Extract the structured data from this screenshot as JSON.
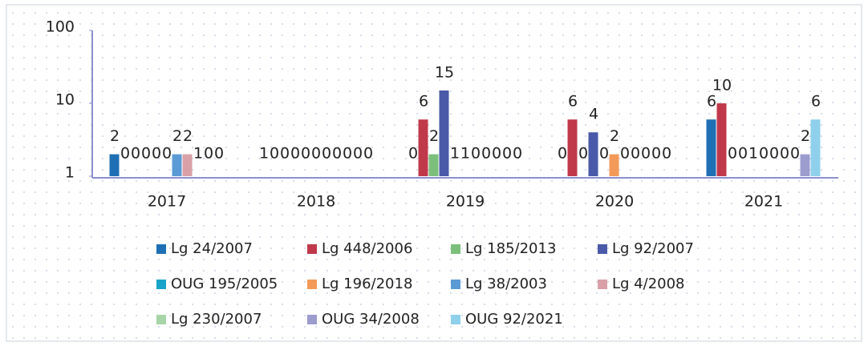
{
  "chart_data": {
    "type": "bar",
    "categories": [
      "2017",
      "2018",
      "2019",
      "2020",
      "2021"
    ],
    "series": [
      {
        "name": "Lg 24/2007",
        "color": "#1f6fb5",
        "values": [
          2,
          1,
          0,
          0,
          6
        ]
      },
      {
        "name": "Lg 448/2006",
        "color": "#c0394b",
        "values": [
          0,
          0,
          6,
          6,
          10
        ]
      },
      {
        "name": "Lg 185/2013",
        "color": "#7bbf7b",
        "values": [
          0,
          0,
          2,
          0,
          0
        ]
      },
      {
        "name": "Lg 92/2007",
        "color": "#4a5aa8",
        "values": [
          0,
          0,
          15,
          4,
          0
        ]
      },
      {
        "name": "OUG 195/2005",
        "color": "#1aa3c8",
        "values": [
          0,
          0,
          1,
          0,
          1
        ]
      },
      {
        "name": "Lg 196/2018",
        "color": "#f39a5a",
        "values": [
          0,
          0,
          1,
          2,
          0
        ]
      },
      {
        "name": "Lg 38/2003",
        "color": "#5b9bd5",
        "values": [
          2,
          0,
          0,
          0,
          0
        ]
      },
      {
        "name": "Lg 4/2008",
        "color": "#d9a0a8",
        "values": [
          2,
          0,
          0,
          0,
          0
        ]
      },
      {
        "name": "Lg 230/2007",
        "color": "#a8d5a8",
        "values": [
          1,
          0,
          0,
          0,
          0
        ]
      },
      {
        "name": "OUG 34/2008",
        "color": "#9c9ccf",
        "values": [
          0,
          0,
          0,
          0,
          2
        ]
      },
      {
        "name": "OUG 92/2021",
        "color": "#8fd0ec",
        "values": [
          0,
          0,
          0,
          0,
          6
        ]
      }
    ],
    "ylim": [
      1,
      100
    ],
    "yticks": [
      1,
      10,
      100
    ],
    "log": true,
    "grid": false,
    "legend": "bottom"
  }
}
